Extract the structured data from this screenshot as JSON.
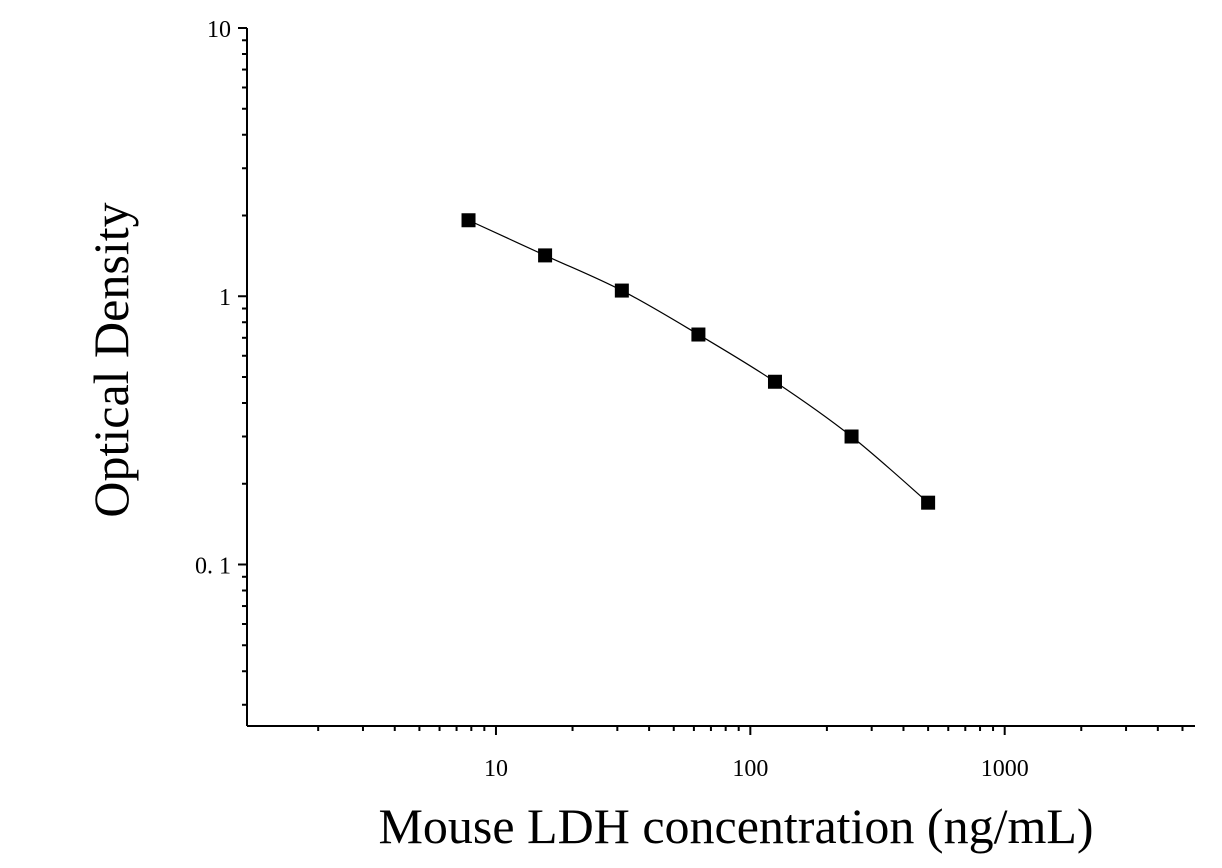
{
  "chart_data": {
    "type": "scatter",
    "title": "",
    "xlabel": "Mouse LDH concentration (ng/mL)",
    "ylabel": "Optical Density",
    "x_scale": "log",
    "y_scale": "log",
    "xlim": [
      1.05,
      5600
    ],
    "ylim": [
      0.025,
      10
    ],
    "x_ticks": [
      {
        "value": 10,
        "label": "10"
      },
      {
        "value": 100,
        "label": "100"
      },
      {
        "value": 1000,
        "label": "1000"
      }
    ],
    "y_ticks": [
      {
        "value": 10,
        "label": "10"
      },
      {
        "value": 1,
        "label": "1"
      },
      {
        "value": 0.1,
        "label": "0. 1"
      }
    ],
    "grid": false,
    "legend": false,
    "series": [
      {
        "marker": "square",
        "color": "#000000",
        "fit_line": true,
        "x": [
          7.8,
          15.6,
          31.25,
          62.5,
          125,
          250,
          500
        ],
        "y": [
          1.92,
          1.42,
          1.05,
          0.72,
          0.48,
          0.3,
          0.17
        ]
      }
    ]
  }
}
